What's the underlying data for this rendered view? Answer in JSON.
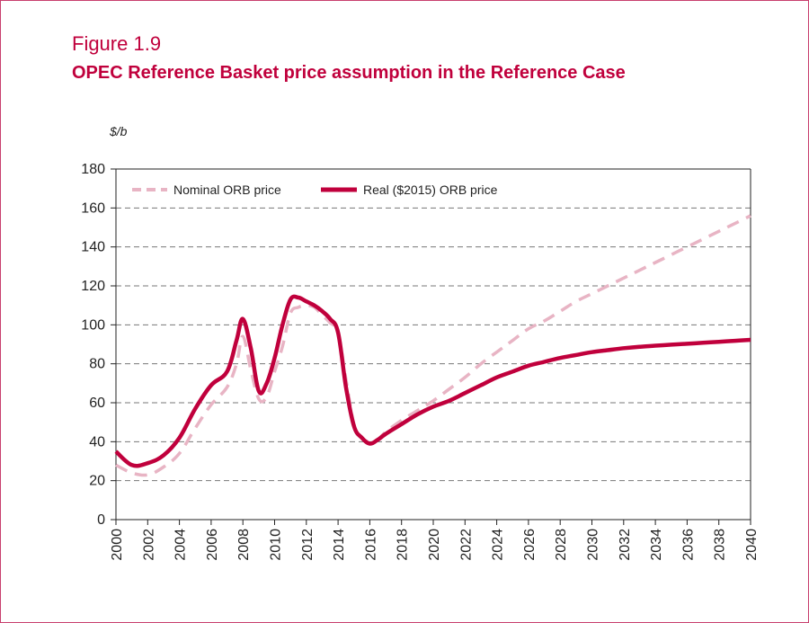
{
  "figure": {
    "label": "Figure 1.9",
    "title": "OPEC Reference Basket price assumption in the Reference Case",
    "unit": "$/b"
  },
  "colors": {
    "frame": "#c8406e",
    "title": "#c0003c",
    "real": "#c0003c",
    "nominal": "#e8b4c4",
    "grid": "#777777"
  },
  "chart_data": {
    "type": "line",
    "xlim": [
      2000,
      2040
    ],
    "ylim": [
      0,
      180
    ],
    "grid": true,
    "legend_position": "top-left",
    "x_ticks": [
      "2000",
      "2002",
      "2004",
      "2006",
      "2008",
      "2010",
      "2012",
      "2014",
      "2016",
      "2018",
      "2020",
      "2022",
      "2024",
      "2026",
      "2028",
      "2030",
      "2032",
      "2034",
      "2036",
      "2038",
      "2040"
    ],
    "y_ticks": [
      "0",
      "20",
      "40",
      "60",
      "80",
      "100",
      "120",
      "140",
      "160",
      "180"
    ],
    "series": [
      {
        "name": "Nominal ORB price",
        "style": "dashed",
        "x": [
          2000,
          2001,
          2002,
          2003,
          2004,
          2005,
          2006,
          2007,
          2007.6,
          2008,
          2008.5,
          2009,
          2009.5,
          2010,
          2010.5,
          2011,
          2011.5,
          2012,
          2012.5,
          2013,
          2013.5,
          2014,
          2014.5,
          2015,
          2015.5,
          2016,
          2016.5,
          2017,
          2018,
          2019,
          2020,
          2021,
          2022,
          2023,
          2024,
          2025,
          2026,
          2027,
          2028,
          2029,
          2030,
          2031,
          2032,
          2033,
          2034,
          2035,
          2036,
          2037,
          2038,
          2039,
          2040
        ],
        "y": [
          28,
          24,
          23,
          27,
          34,
          47,
          59,
          68,
          80,
          94,
          77,
          62,
          63,
          76,
          89,
          106,
          109,
          110,
          109,
          105,
          101,
          96,
          72,
          49,
          42,
          40,
          41,
          45,
          51,
          56,
          61,
          67,
          73,
          80,
          86,
          92,
          98,
          102,
          107,
          112,
          116,
          120,
          124,
          128,
          132,
          136,
          140,
          144,
          148,
          152,
          156
        ]
      },
      {
        "name": "Real ($2015) ORB price",
        "style": "solid",
        "x": [
          2000,
          2001,
          2002,
          2003,
          2004,
          2005,
          2006,
          2007,
          2007.6,
          2008,
          2008.5,
          2009,
          2009.5,
          2010,
          2010.5,
          2011,
          2011.5,
          2012,
          2012.5,
          2013,
          2013.5,
          2014,
          2014.5,
          2015,
          2015.5,
          2016,
          2016.5,
          2017,
          2018,
          2019,
          2020,
          2021,
          2022,
          2023,
          2024,
          2025,
          2026,
          2027,
          2028,
          2029,
          2030,
          2031,
          2032,
          2033,
          2034,
          2035,
          2036,
          2037,
          2038,
          2039,
          2040
        ],
        "y": [
          35,
          28,
          29,
          33,
          42,
          57,
          69,
          76,
          92,
          103,
          88,
          66,
          70,
          83,
          100,
          113,
          114,
          112,
          110,
          107,
          103,
          96,
          68,
          48,
          42,
          39,
          41,
          44,
          49,
          54,
          58,
          61,
          65,
          69,
          73,
          76,
          79,
          81,
          83,
          84.5,
          86,
          87,
          88,
          88.7,
          89.3,
          89.8,
          90.3,
          90.8,
          91.3,
          91.8,
          92.3
        ]
      }
    ]
  }
}
